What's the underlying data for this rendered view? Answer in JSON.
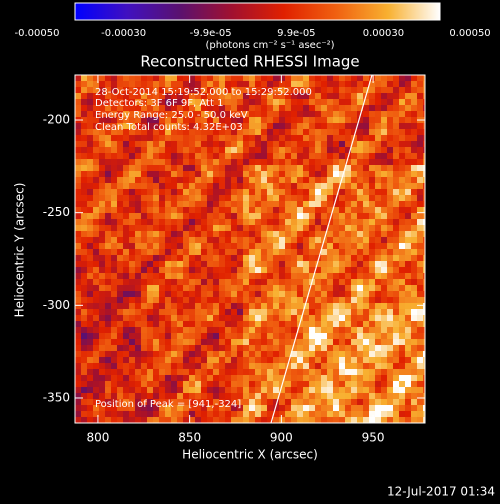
{
  "chart_data": {
    "type": "image",
    "title": "Reconstructed RHESSI Image",
    "colorbar": {
      "label": "(photons cm⁻² s⁻¹ asec⁻²)",
      "lim": [
        -0.0005,
        0.0005
      ],
      "ticks": [
        {
          "value": -0.0005,
          "label": "-0.00050"
        },
        {
          "value": -0.0003,
          "label": "-0.00030"
        },
        {
          "value": -9.9e-05,
          "label": "-9.9e-05"
        },
        {
          "value": 9.9e-05,
          "label": "9.9e-05"
        },
        {
          "value": 0.0003,
          "label": "0.00030"
        },
        {
          "value": 0.0005,
          "label": "0.00050"
        }
      ],
      "colormap": [
        "#0000ff",
        "#4010c0",
        "#5a1070",
        "#a01030",
        "#e02000",
        "#f06010",
        "#f8b030",
        "#ffffff"
      ]
    },
    "xlabel": "Heliocentric X (arcsec)",
    "ylabel": "Heliocentric Y (arcsec)",
    "xlim": [
      787.5,
      978.3
    ],
    "ylim": [
      -363.5,
      -175.7
    ],
    "xticks": [
      800,
      850,
      900,
      950
    ],
    "yticks": [
      -200,
      -250,
      -300,
      -350
    ],
    "annotations": [
      "28-Oct-2014 15:19:52.000 to 15:29:52.000",
      "Detectors: 3F 6F 9F, Att 1",
      "Energy Range: 25.0 - 50.0 keV",
      "Clean    Total counts: 4.32E+03",
      "Position of Peak = [941,-324]"
    ],
    "timestamp": "12-Jul-2017 01:34"
  }
}
